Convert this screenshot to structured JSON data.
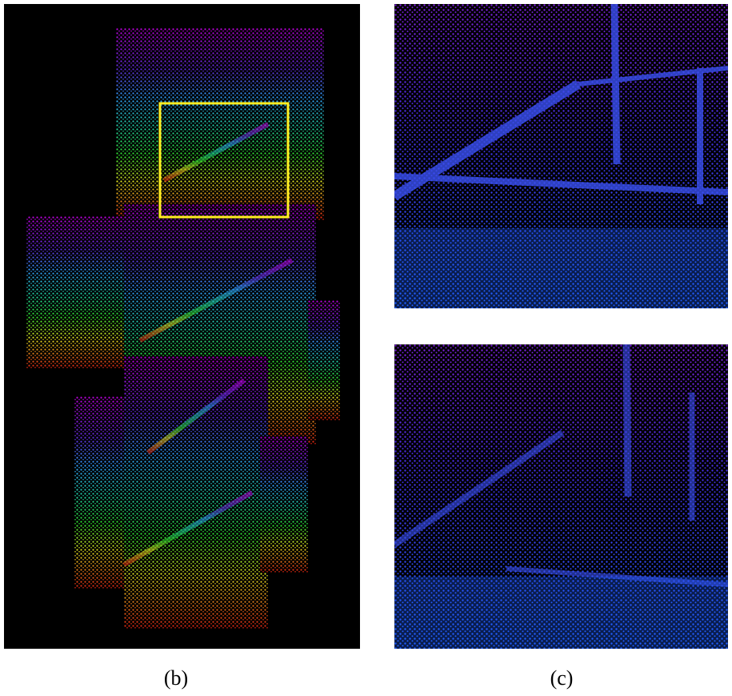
{
  "figure": {
    "panels": [
      {
        "id": "b",
        "caption": "(b)",
        "content": "point-cloud-overview"
      },
      {
        "id": "c",
        "caption": "(c)",
        "content": "zoomed-point-cloud-comparison"
      }
    ],
    "highlight_color": "#ffee22",
    "background_color": "#000000",
    "gradient_colors": [
      "#c000e0",
      "#6020e0",
      "#2060ff",
      "#20c0e0",
      "#20e060",
      "#e0e020",
      "#e02010"
    ]
  }
}
